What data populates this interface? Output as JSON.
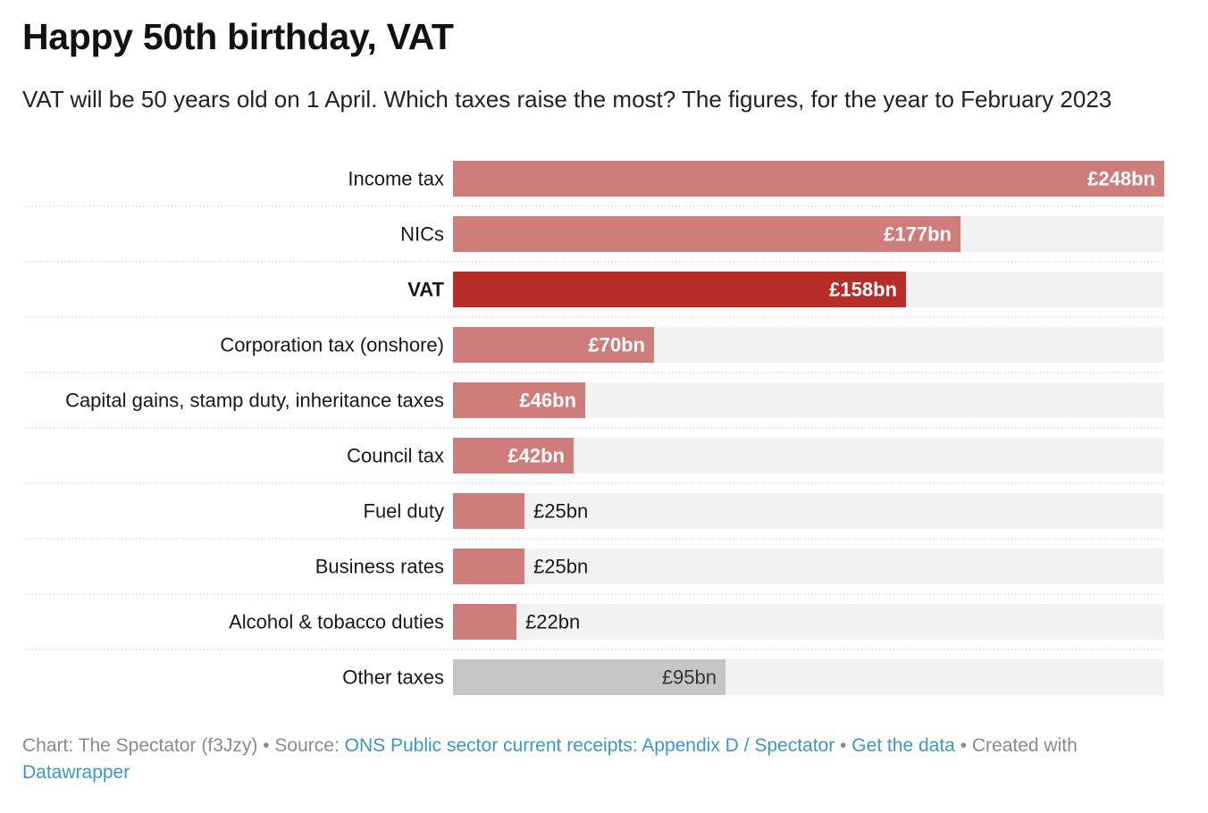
{
  "title": "Happy 50th birthday, VAT",
  "subtitle": "VAT will be 50 years old on 1 April. Which taxes raise the most? The figures, for the year to February 2023",
  "chart_data": {
    "type": "bar",
    "orientation": "horizontal",
    "categories": [
      "Income tax",
      "NICs",
      "VAT",
      "Corporation tax (onshore)",
      "Capital gains, stamp duty, inheritance taxes",
      "Council tax",
      "Fuel duty",
      "Business rates",
      "Alcohol & tobacco duties",
      "Other taxes"
    ],
    "values": [
      248,
      177,
      158,
      70,
      46,
      42,
      25,
      25,
      22,
      95
    ],
    "value_labels": [
      "£248bn",
      "£177bn",
      "£158bn",
      "£70bn",
      "£46bn",
      "£42bn",
      "£25bn",
      "£25bn",
      "£22bn",
      "£95bn"
    ],
    "highlight": "VAT",
    "unit": "£bn",
    "xlim": [
      0,
      248
    ],
    "colors": {
      "default": "#cf7d7b",
      "highlight": "#b72e28",
      "other": "#c6c6c6",
      "track": "#f2f2f2"
    }
  },
  "footer": {
    "chart_credit": "Chart: The Spectator (f3Jzy)",
    "sep1": " • Source: ",
    "source_link": "ONS Public sector current receipts: Appendix D / Spectator",
    "sep2": " • ",
    "data_link": "Get the data",
    "sep3": " • Created with ",
    "datawrapper_link": "Datawrapper"
  }
}
